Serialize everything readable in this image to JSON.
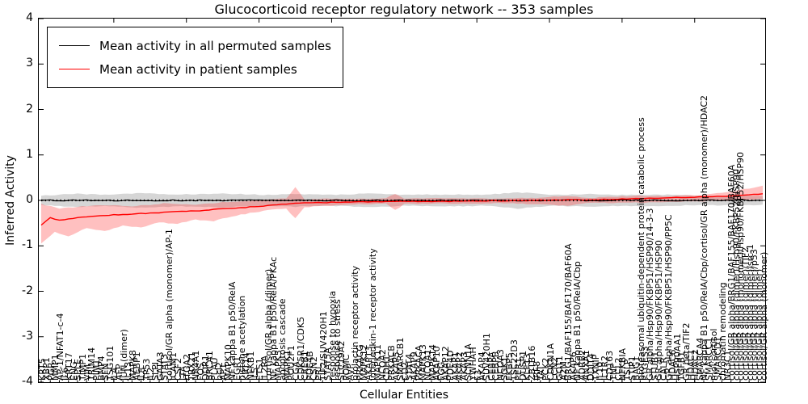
{
  "title": "Glucocorticoid receptor regulatory network -- 353 samples",
  "axes": {
    "y_label": "Inferred Activity",
    "x_label": "Cellular Entities",
    "y_tick_labels": [
      "4",
      "3",
      "2",
      "1",
      "0",
      "-1",
      "-2",
      "-3",
      "-4"
    ]
  },
  "chart_data": {
    "type": "line",
    "title": "Glucocorticoid receptor regulatory network -- 353 samples",
    "xlabel": "Cellular Entities",
    "ylabel": "Inferred Activity",
    "ylim": [
      -4,
      4
    ],
    "grid": false,
    "legend_position": "upper left",
    "categories": [
      "KRT5",
      "XBP1",
      "PGR",
      "MMP1",
      "AP-1/NFAT1-c-4",
      "IL6",
      "KRT17",
      "ENG",
      "SELE",
      "TIMP1",
      "VIM",
      "TRIM14",
      "PIM1",
      "BMP4",
      "SFN",
      "TSG101",
      "IL4",
      "AFP",
      "JUN (dimer)",
      "IL13",
      "MAPK8",
      "AEBP1",
      "IL8",
      "TP53",
      "IL2",
      "SLPI",
      "GATA3",
      "STAT3",
      "cortisol/GR alpha (monomer)/AP-1",
      "ICAM1",
      "CSF2",
      "LTA",
      "ITGA2",
      "TBX21",
      "NR4A1",
      "FOS",
      "DDR1",
      "BRCA1",
      "PLAU",
      "bcl2",
      "AP1",
      "MAPK10",
      "NF kappa B1 p50/RelA",
      "EGR1",
      "histone acetylation",
      "KRT14",
      "NFKB1",
      "IL5",
      "ETS1",
      "IL2RA",
      "cortisol/GR alpha (dimer)",
      "NF kappa B1 p50/RelA/PKAc",
      "MAPK3",
      "apoptosis cascade",
      "MAPK1",
      "POU2F1",
      "CGA",
      "CDK5R1/CDK5",
      "CREB1",
      "PDE4B",
      "CSN2",
      "PRL",
      "TIF2/SUV420H1",
      "STAT5A",
      "response to hypoxia",
      "response to stress",
      "SLC19A2",
      "POMC",
      "AVP",
      "prolactin receptor activity",
      "PRKACG",
      "MAPK12",
      "AKAP13",
      "interleukin-1 receptor activity",
      "MAPK11",
      "NCOA2",
      "CDH1",
      "PRKACB",
      "AKAP5",
      "SMARCB1",
      "CD2",
      "STAT4",
      "AKAP9",
      "PRKACA",
      "MAPK13",
      "NCOA1",
      "MAPK14",
      "AKAP10",
      "FGG",
      "AKAP12",
      "PDE4D",
      "AKAP1",
      "AKAP2",
      "AKAP3",
      "SCNN1A",
      "YWHAH",
      "F3",
      "AKAP4",
      "SUV420H1",
      "CEBPA",
      "CEBPB",
      "NCOA3",
      "SGK1",
      "FKBP5",
      "TSC22D3",
      "PER1",
      "DUSP1",
      "KLF13",
      "ZBTB16",
      "IRF8",
      "TAT",
      "PCK2",
      "CDKN1A",
      "LCN2",
      "GOT1",
      "A2M",
      "BRG1/BAF155/BAF170/BAF60A",
      "AKAP6",
      "NF kappa B1 p50/RelA/Cbp",
      "ADRB2",
      "ANXA1",
      "DDIT4",
      "TXNIP",
      "IL10",
      "IL1R2",
      "CD163",
      "TNF",
      "CCL2",
      "NFKBIA",
      "TSLP",
      "STIP1",
      "BAG1",
      "proteasomal ubiquitin-dependent protein catabolic process",
      "PTGES3",
      "GR alpha/Hsp90/FKBP51/HSP90/14-3-3",
      "STUB1",
      "GR alpha/Hsp90/FKBP51/HSP90",
      "CALR",
      "GR alpha/Hsp90/FKBP51/HSP90/PP5C",
      "HDAC6",
      "HSP90AA1",
      "TGFB1",
      "GR beta/TIF2",
      "HDAC1",
      "HDAC2",
      "SMARCA4",
      "NF kappa B1 p50/RelA/Cbp/cortisol/GR alpha (monomer)/HDAC2",
      "SMARCC1",
      "mol:cortisol",
      "SMARCD1",
      "chromatin remodeling",
      "NR3C1",
      "cortisol/GR alpha/BRG1/BAF155/BAF170/BAF60A",
      "cortisol/GR alpha (dimer)/Hsp90/FKBP52/HSP90",
      "cortisol/GR alpha (monomer)/Hsp90/FKBP52/HSP90",
      "cortisol/GR alpha (dimer)/TIF2",
      "cortisol/GR alpha (dimer)/src-1",
      "cortisol/GR alpha (dimer)/p53",
      "cortisol/GR alpha (dimer)",
      "cortisol/GR alpha (monomer)"
    ],
    "series": [
      {
        "name": "Mean activity in all permuted samples",
        "color": "#000000",
        "line_width": 1.2,
        "jitter": 0.025,
        "knots": [
          [
            0,
            0.0
          ],
          [
            159,
            0.0
          ]
        ],
        "band": {
          "color": "rgba(120,120,120,0.30)",
          "upper_knots": [
            [
              0,
              0.1
            ],
            [
              8,
              0.15
            ],
            [
              14,
              0.12
            ],
            [
              22,
              0.16
            ],
            [
              30,
              0.13
            ],
            [
              40,
              0.15
            ],
            [
              50,
              0.12
            ],
            [
              56,
              0.14
            ],
            [
              64,
              0.12
            ],
            [
              72,
              0.15
            ],
            [
              80,
              0.12
            ],
            [
              90,
              0.13
            ],
            [
              98,
              0.12
            ],
            [
              105,
              0.18
            ],
            [
              112,
              0.12
            ],
            [
              120,
              0.14
            ],
            [
              128,
              0.12
            ],
            [
              136,
              0.13
            ],
            [
              145,
              0.1
            ],
            [
              152,
              0.11
            ],
            [
              159,
              0.1
            ]
          ],
          "lower_knots": [
            [
              0,
              -0.1
            ],
            [
              8,
              -0.15
            ],
            [
              14,
              -0.12
            ],
            [
              22,
              -0.16
            ],
            [
              30,
              -0.13
            ],
            [
              40,
              -0.15
            ],
            [
              50,
              -0.12
            ],
            [
              56,
              -0.14
            ],
            [
              64,
              -0.12
            ],
            [
              72,
              -0.15
            ],
            [
              80,
              -0.12
            ],
            [
              90,
              -0.13
            ],
            [
              98,
              -0.12
            ],
            [
              105,
              -0.18
            ],
            [
              112,
              -0.12
            ],
            [
              120,
              -0.14
            ],
            [
              128,
              -0.12
            ],
            [
              136,
              -0.13
            ],
            [
              145,
              -0.1
            ],
            [
              152,
              -0.11
            ],
            [
              159,
              -0.1
            ]
          ]
        }
      },
      {
        "name": "Mean activity in patient samples",
        "color": "#ff0000",
        "line_width": 1.4,
        "jitter": 0.015,
        "knots": [
          [
            0,
            -0.55
          ],
          [
            2,
            -0.38
          ],
          [
            4,
            -0.44
          ],
          [
            8,
            -0.38
          ],
          [
            12,
            -0.35
          ],
          [
            16,
            -0.32
          ],
          [
            20,
            -0.3
          ],
          [
            24,
            -0.28
          ],
          [
            28,
            -0.26
          ],
          [
            32,
            -0.24
          ],
          [
            36,
            -0.22
          ],
          [
            40,
            -0.18
          ],
          [
            44,
            -0.16
          ],
          [
            48,
            -0.13
          ],
          [
            52,
            -0.1
          ],
          [
            56,
            -0.06
          ],
          [
            60,
            -0.05
          ],
          [
            66,
            -0.04
          ],
          [
            72,
            -0.03
          ],
          [
            80,
            -0.02
          ],
          [
            90,
            -0.02
          ],
          [
            100,
            -0.01
          ],
          [
            108,
            0.0
          ],
          [
            116,
            0.01
          ],
          [
            124,
            0.02
          ],
          [
            132,
            0.04
          ],
          [
            140,
            0.06
          ],
          [
            146,
            0.08
          ],
          [
            152,
            0.1
          ],
          [
            156,
            0.12
          ],
          [
            159,
            0.15
          ]
        ],
        "band": {
          "color": "rgba(255,60,60,0.32)",
          "upper_knots": [
            [
              0,
              -0.08
            ],
            [
              4,
              -0.18
            ],
            [
              8,
              -0.14
            ],
            [
              14,
              -0.1
            ],
            [
              20,
              -0.13
            ],
            [
              28,
              -0.06
            ],
            [
              34,
              -0.1
            ],
            [
              40,
              -0.04
            ],
            [
              45,
              -0.02
            ],
            [
              50,
              0.02
            ],
            [
              54,
              0.04
            ],
            [
              56,
              0.3
            ],
            [
              58,
              0.02
            ],
            [
              62,
              0.03
            ],
            [
              66,
              0.04
            ],
            [
              72,
              0.03
            ],
            [
              76,
              0.05
            ],
            [
              78,
              0.15
            ],
            [
              80,
              0.04
            ],
            [
              90,
              0.05
            ],
            [
              100,
              0.04
            ],
            [
              110,
              0.06
            ],
            [
              116,
              0.1
            ],
            [
              120,
              0.05
            ],
            [
              126,
              0.08
            ],
            [
              132,
              0.1
            ],
            [
              138,
              0.09
            ],
            [
              145,
              0.12
            ],
            [
              152,
              0.2
            ],
            [
              156,
              0.26
            ],
            [
              159,
              0.32
            ]
          ],
          "lower_knots": [
            [
              0,
              -0.95
            ],
            [
              3,
              -0.7
            ],
            [
              6,
              -0.8
            ],
            [
              10,
              -0.6
            ],
            [
              14,
              -0.68
            ],
            [
              18,
              -0.55
            ],
            [
              22,
              -0.6
            ],
            [
              26,
              -0.48
            ],
            [
              30,
              -0.52
            ],
            [
              34,
              -0.42
            ],
            [
              38,
              -0.46
            ],
            [
              42,
              -0.35
            ],
            [
              46,
              -0.28
            ],
            [
              50,
              -0.22
            ],
            [
              54,
              -0.18
            ],
            [
              56,
              -0.4
            ],
            [
              58,
              -0.15
            ],
            [
              62,
              -0.12
            ],
            [
              66,
              -0.1
            ],
            [
              72,
              -0.08
            ],
            [
              76,
              -0.07
            ],
            [
              78,
              -0.22
            ],
            [
              80,
              -0.08
            ],
            [
              90,
              -0.07
            ],
            [
              100,
              -0.06
            ],
            [
              108,
              -0.08
            ],
            [
              116,
              -0.12
            ],
            [
              120,
              -0.06
            ],
            [
              130,
              -0.05
            ],
            [
              138,
              -0.04
            ],
            [
              145,
              -0.02
            ],
            [
              152,
              0.0
            ],
            [
              159,
              0.03
            ]
          ]
        }
      }
    ]
  },
  "legend": {
    "items": [
      {
        "label": "Mean activity in all permuted samples",
        "color": "#000000"
      },
      {
        "label": "Mean activity in patient samples",
        "color": "#ff0000"
      }
    ]
  }
}
